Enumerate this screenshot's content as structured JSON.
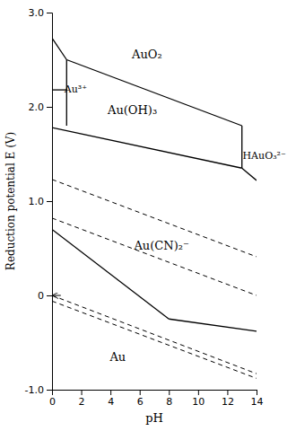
{
  "chart_data": {
    "type": "line",
    "xlabel": "pH",
    "ylabel": "Reduction potential E (V)",
    "xlim": [
      0,
      14
    ],
    "ylim": [
      -1.0,
      3.0
    ],
    "xticks": [
      0,
      2,
      4,
      6,
      8,
      10,
      12,
      14
    ],
    "yticks": [
      {
        "value": -1.0,
        "label": "-1.0"
      },
      0,
      {
        "value": 1.0,
        "label": "1.0"
      },
      {
        "value": 2.0,
        "label": "2.0"
      },
      {
        "value": 3.0,
        "label": "3.0"
      }
    ],
    "grid": false,
    "series": [
      {
        "x": [
          0.0,
          1.0
        ],
        "values": [
          2.73,
          2.5
        ],
        "color": "black",
        "line_style": "solid"
      },
      {
        "x": [
          1.0,
          1.0
        ],
        "values": [
          2.5,
          2.18
        ],
        "color": "black",
        "line_style": "solid"
      },
      {
        "x": [
          0.0,
          1.0
        ],
        "values": [
          2.18,
          2.18
        ],
        "color": "black",
        "line_style": "solid"
      },
      {
        "x": [
          1.0,
          1.0
        ],
        "values": [
          2.18,
          1.8
        ],
        "color": "black",
        "line_style": "solid"
      },
      {
        "x": [
          1.0,
          13.0
        ],
        "values": [
          2.5,
          1.8
        ],
        "color": "black",
        "line_style": "solid"
      },
      {
        "x": [
          0.0,
          13.0
        ],
        "values": [
          1.78,
          1.35
        ],
        "color": "black",
        "line_style": "solid"
      },
      {
        "x": [
          13.0,
          13.0
        ],
        "values": [
          1.8,
          1.35
        ],
        "color": "black",
        "line_style": "solid"
      },
      {
        "x": [
          13.0,
          14.0
        ],
        "values": [
          1.35,
          1.22
        ],
        "color": "black",
        "line_style": "solid"
      },
      {
        "x": [
          0.0,
          8.0
        ],
        "values": [
          0.7,
          -0.25
        ],
        "color": "black",
        "line_style": "solid"
      },
      {
        "x": [
          8.0,
          14.0
        ],
        "values": [
          -0.25,
          -0.38
        ],
        "color": "black",
        "line_style": "solid"
      },
      {
        "x": [
          0,
          14
        ],
        "values": [
          1.23,
          0.41
        ],
        "color": "black",
        "line_style": "dashed"
      },
      {
        "x": [
          0,
          14
        ],
        "values": [
          0.82,
          0.0
        ],
        "color": "black",
        "line_style": "dashed"
      },
      {
        "x": [
          0,
          14
        ],
        "values": [
          0.0,
          -0.83
        ],
        "color": "black",
        "line_style": "dashed"
      },
      {
        "x": [
          0,
          14
        ],
        "values": [
          -0.06,
          -0.88
        ],
        "color": "black",
        "line_style": "dashed"
      },
      {
        "type": "arrow",
        "x": [
          0.6,
          0.0
        ],
        "values": [
          0.0,
          0.0
        ],
        "color": "black",
        "line_style": "solid"
      }
    ],
    "annotations": [
      {
        "text": "AuO₂",
        "x": 6.5,
        "y": 2.56
      },
      {
        "text": "Au(OH)₃",
        "x": 5.5,
        "y": 1.97
      },
      {
        "text": "Au(CN)₂⁻",
        "x": 7.5,
        "y": 0.53
      },
      {
        "text": "Au",
        "x": 4.5,
        "y": -0.65
      },
      {
        "text": "Au³⁺",
        "x": 0.85,
        "y": 2.19
      },
      {
        "text": "HAuO₃²⁻",
        "x": 13.05,
        "y": 1.48
      }
    ]
  }
}
